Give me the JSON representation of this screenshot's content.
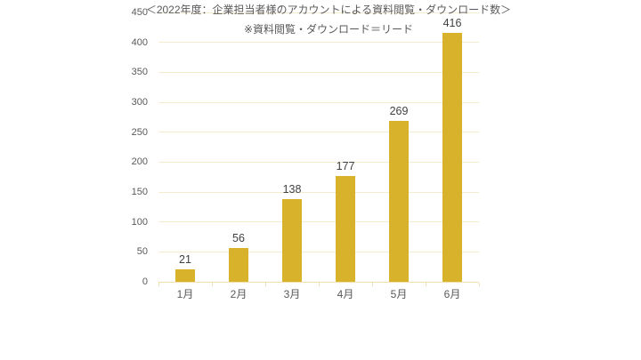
{
  "chart_data": {
    "type": "bar",
    "categories": [
      "1月",
      "2月",
      "3月",
      "4月",
      "5月",
      "6月"
    ],
    "values": [
      21,
      56,
      138,
      177,
      269,
      416
    ],
    "title": "",
    "xlabel": "",
    "ylabel": "",
    "ylim": [
      0,
      450
    ],
    "yticks": [
      0,
      50,
      100,
      150,
      200,
      250,
      300,
      350,
      400,
      450
    ],
    "grid": true,
    "legend": false,
    "bar_color": "#D9B22B",
    "gridline_color": "#F4ECCF",
    "axis_line_color": "#EDDFAE",
    "axis_label_color": "#595959",
    "data_label_color": "#404040"
  },
  "caption": {
    "line1": "＜2022年度：企業担当者様のアカウントによる資料閲覧・ダウンロード数＞",
    "line2": "※資料閲覧・ダウンロード＝リード"
  }
}
